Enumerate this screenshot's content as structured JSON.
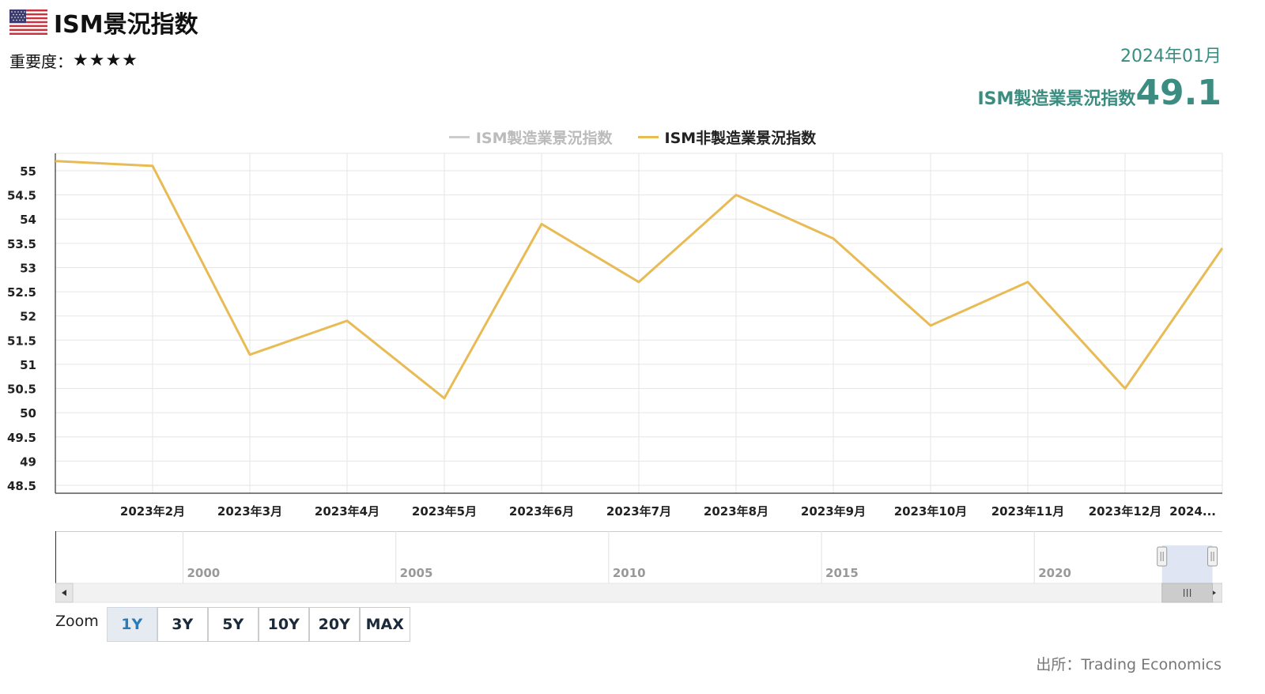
{
  "header": {
    "title": "ISM景況指数",
    "flag_icon": "us-flag-icon",
    "importance_label": "重要度：",
    "importance_stars": "★★★★"
  },
  "latest": {
    "date": "2024年01月",
    "label": "ISM製造業景況指数",
    "value": "49.1",
    "color": "#3a8d80"
  },
  "chart_data": {
    "type": "line",
    "legend_placement": "top-center",
    "grid": true,
    "ylim": [
      48.5,
      55
    ],
    "y_ticks": [
      "55",
      "54.5",
      "54",
      "53.5",
      "53",
      "52.5",
      "52",
      "51.5",
      "51",
      "50.5",
      "50",
      "49.5",
      "49",
      "48.5"
    ],
    "x_labels": [
      "2023年2月",
      "2023年3月",
      "2023年4月",
      "2023年5月",
      "2023年6月",
      "2023年7月",
      "2023年8月",
      "2023年9月",
      "2023年10月",
      "2023年11月",
      "2023年12月",
      "2024..."
    ],
    "series": [
      {
        "name": "ISM製造業景況指数",
        "color": "#cccccc",
        "hidden": true,
        "x": [],
        "values": []
      },
      {
        "name": "ISM非製造業景況指数",
        "color": "#e8bb55",
        "hidden": false,
        "x": [
          "2023-01",
          "2023-02",
          "2023-03",
          "2023-04",
          "2023-05",
          "2023-06",
          "2023-07",
          "2023-08",
          "2023-09",
          "2023-10",
          "2023-11",
          "2023-12",
          "2024-01"
        ],
        "values": [
          55.2,
          55.1,
          51.2,
          51.9,
          50.3,
          53.9,
          52.7,
          54.5,
          53.6,
          51.8,
          52.7,
          50.5,
          53.4
        ]
      }
    ],
    "navigator": {
      "year_labels": [
        "2000",
        "2005",
        "2010",
        "2015",
        "2020"
      ],
      "range_start": "1997-01",
      "range_end": "2024-06",
      "selected_start": "2023-01",
      "selected_end": "2024-01"
    }
  },
  "zoom": {
    "label": "Zoom",
    "buttons": [
      "1Y",
      "3Y",
      "5Y",
      "10Y",
      "20Y",
      "MAX"
    ],
    "active": "1Y"
  },
  "source": "出所：Trading Economics"
}
